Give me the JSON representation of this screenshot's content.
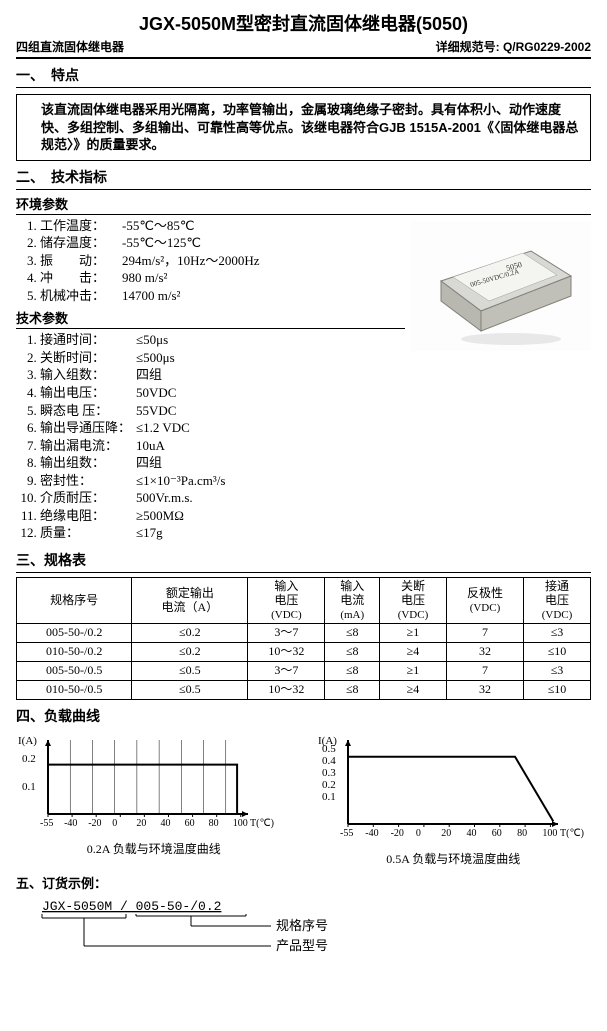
{
  "header": {
    "title": "JGX-5050M型密封直流固体继电器(5050)",
    "subtitle_left": "四组直流固体继电器",
    "subtitle_right": "详细规范号: Q/RG0229-2002"
  },
  "section1": {
    "head": "一、　特点",
    "text": "该直流固体继电器采用光隔离，功率管输出，金属玻璃绝缘子密封。具有体积小、动作速度快、多组控制、多组输出、可靠性高等优点。该继电器符合GJB 1515A-2001《〈固体继电器总规范〉》的质量要求。"
  },
  "section2": {
    "head": "二、　技术指标",
    "env_head": "环境参数",
    "env": [
      {
        "lab": "工作温度：",
        "val": "-55℃～85℃"
      },
      {
        "lab": "储存温度：",
        "val": "-55℃～125℃"
      },
      {
        "lab": "振　　动：",
        "val": "294m/s²，10Hz～2000Hz"
      },
      {
        "lab": "冲　　击：",
        "val": "980 m/s²"
      },
      {
        "lab": "机械冲击：",
        "val": "14700 m/s²"
      }
    ],
    "tech_head": "技术参数",
    "tech": [
      {
        "lab": "接通时间：",
        "val": "≤50μs"
      },
      {
        "lab": "关断时间：",
        "val": "≤500μs"
      },
      {
        "lab": "输入组数：",
        "val": "四组"
      },
      {
        "lab": "输出电压：",
        "val": "50VDC"
      },
      {
        "lab": "瞬态电 压：",
        "val": "55VDC"
      },
      {
        "lab": "输出导通压降：",
        "val": "≤1.2 VDC"
      },
      {
        "lab": "输出漏电流：",
        "val": "10uA"
      },
      {
        "lab": "输出组数：",
        "val": "四组"
      },
      {
        "lab": "密封性：",
        "val": "≤1×10⁻³Pa.cm³/s"
      },
      {
        "lab": "介质耐压：",
        "val": "500Vr.m.s."
      },
      {
        "lab": "绝缘电阻：",
        "val": "≥500MΩ"
      },
      {
        "lab": "质量：",
        "val": "≤17g"
      }
    ],
    "image_alt": "product-photo"
  },
  "section3": {
    "head": "三、规格表",
    "cols": [
      {
        "l1": "规格序号",
        "l2": ""
      },
      {
        "l1": "额定输出",
        "l2": "电流（A）"
      },
      {
        "l1": "输入",
        "l2": "电压",
        "unit": "(VDC)"
      },
      {
        "l1": "输入",
        "l2": "电流",
        "unit": "(mA)"
      },
      {
        "l1": "关断",
        "l2": "电压",
        "unit": "(VDC)"
      },
      {
        "l1": "反极性",
        "l2": "",
        "unit": "(VDC)"
      },
      {
        "l1": "接通",
        "l2": "电压",
        "unit": "(VDC)"
      }
    ],
    "rows": [
      [
        "005-50-/0.2",
        "≤0.2",
        "3～7",
        "≤8",
        "≥1",
        "7",
        "≤3"
      ],
      [
        "010-50-/0.2",
        "≤0.2",
        "10～32",
        "≤8",
        "≥4",
        "32",
        "≤10"
      ],
      [
        "005-50-/0.5",
        "≤0.5",
        "3～7",
        "≤8",
        "≥1",
        "7",
        "≤3"
      ],
      [
        "010-50-/0.5",
        "≤0.5",
        "10～32",
        "≤8",
        "≥4",
        "32",
        "≤10"
      ]
    ]
  },
  "section4": {
    "head": "四、负载曲线",
    "chart1": {
      "ylabel": "I(A)",
      "yticks": [
        "0.2",
        "0.1"
      ],
      "xlabel": "T(℃)",
      "xticks": [
        "-55",
        "-40",
        "-20",
        "0",
        "20",
        "40",
        "60",
        "80",
        "100"
      ],
      "caption": "0.2A 负载与环境温度曲线",
      "line": [
        [
          0,
          20
        ],
        [
          208,
          20
        ],
        [
          208,
          60
        ]
      ],
      "frame_color": "#000",
      "line_color": "#000"
    },
    "chart2": {
      "ylabel": "I(A)",
      "yticks": [
        "0.5",
        "0.4",
        "0.3",
        "0.2",
        "0.1"
      ],
      "xlabel": "T(℃)",
      "xticks": [
        "-55",
        "-40",
        "-20",
        "0",
        "20",
        "40",
        "60",
        "80",
        "100"
      ],
      "caption": "0.5A 负载与环境温度曲线",
      "line": [
        [
          0,
          12
        ],
        [
          175,
          12
        ],
        [
          215,
          58
        ]
      ],
      "frame_color": "#000",
      "line_color": "#000"
    }
  },
  "section5": {
    "head": "五、订货示例：",
    "example": "JGX-5050M / 005-50-/0.2",
    "lbl_spec": "规格序号",
    "lbl_model": "产品型号"
  }
}
